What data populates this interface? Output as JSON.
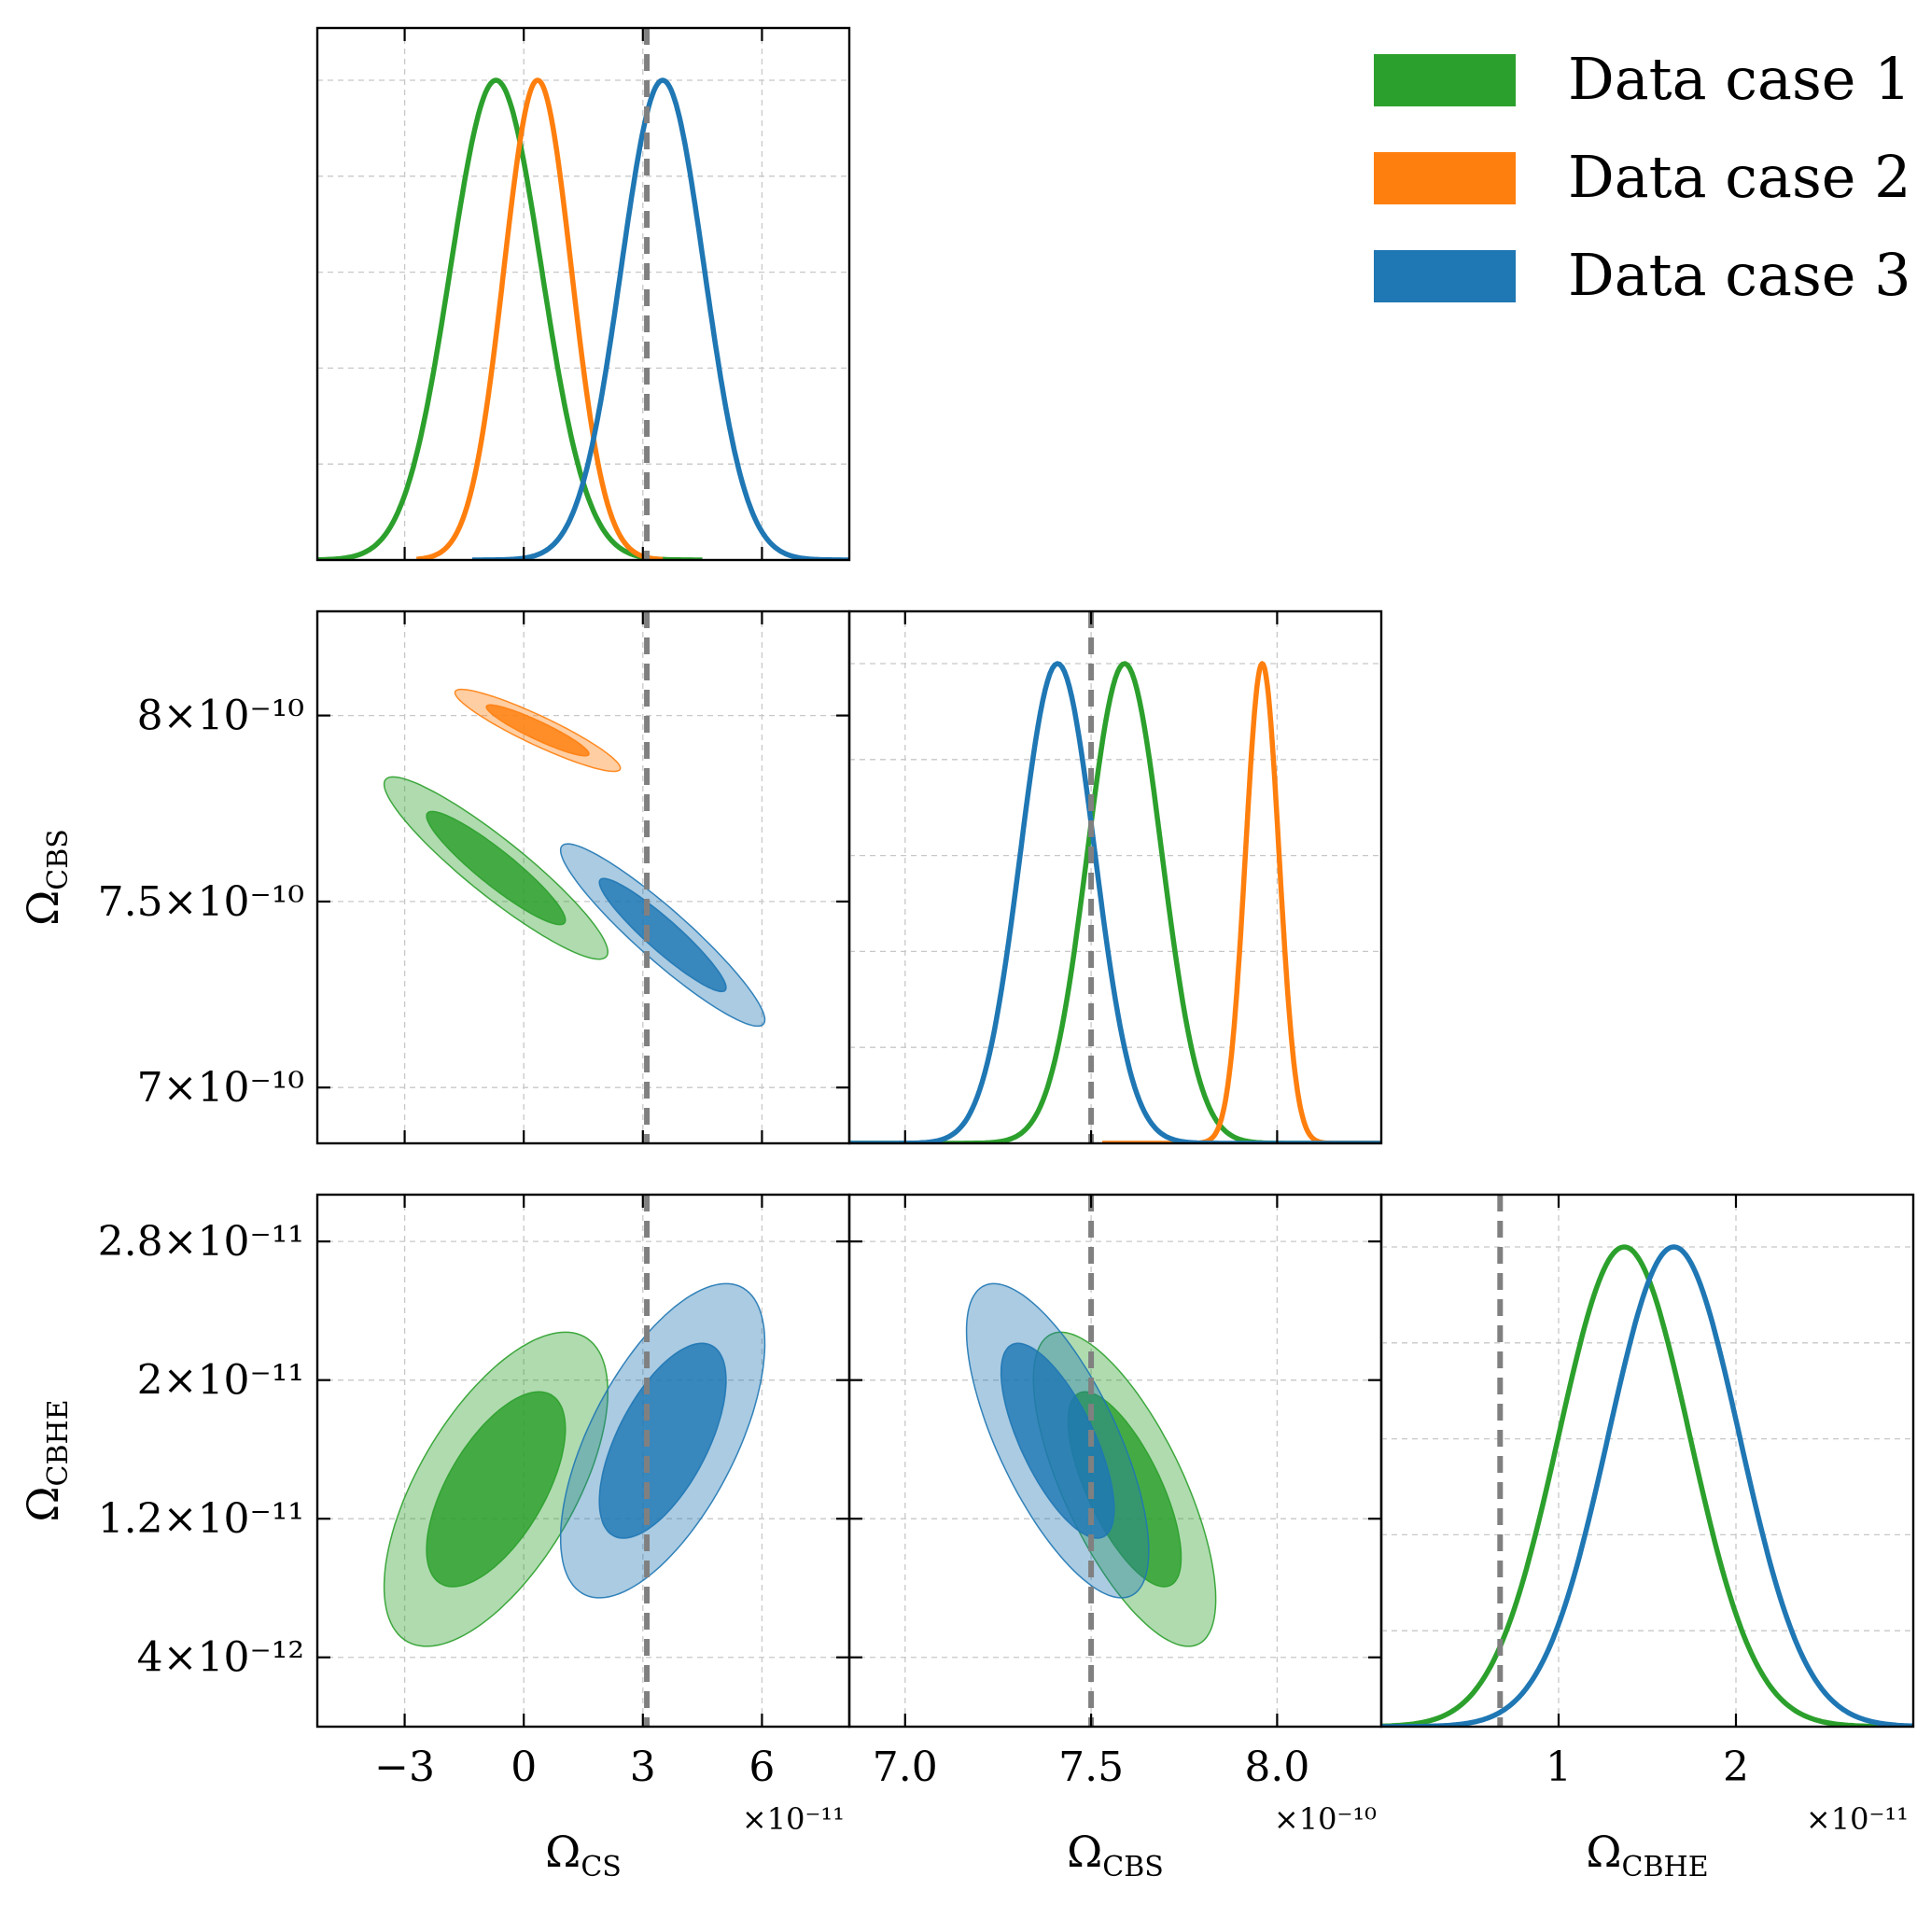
{
  "chart_data": {
    "type": "triangle-corner",
    "grid": true,
    "legend_position": "top-right",
    "truth_line_color": "#808080",
    "series": [
      {
        "name": "Data case 1",
        "color": "#2ca02c"
      },
      {
        "name": "Data case 2",
        "color": "#ff7f0e"
      },
      {
        "name": "Data case 3",
        "color": "#1f77b4"
      }
    ],
    "parameters": [
      {
        "key": "CS",
        "label": "Ω",
        "label_sub": "CS",
        "multiplier": "×10⁻¹¹",
        "range": [
          -5.2,
          8.2
        ],
        "ticks": [
          -3,
          0,
          3,
          6
        ],
        "tick_labels": [
          "−3",
          "0",
          "3",
          "6"
        ],
        "truth": 3.1
      },
      {
        "key": "CBS",
        "label": "Ω",
        "label_sub": "CBS",
        "multiplier": "×10⁻¹⁰",
        "range": [
          6.85,
          8.28
        ],
        "ticks": [
          7.0,
          7.5,
          8.0
        ],
        "tick_labels": [
          "7.0",
          "7.5",
          "8.0"
        ],
        "y_tick_labels": [
          "7×10⁻¹⁰",
          "7.5×10⁻¹⁰",
          "8×10⁻¹⁰"
        ],
        "truth": 7.5
      },
      {
        "key": "CBHE",
        "label": "Ω",
        "label_sub": "CBHE",
        "multiplier": "×10⁻¹¹",
        "range": [
          0.0,
          3.0
        ],
        "ticks": [
          1,
          2
        ],
        "tick_labels": [
          "1",
          "2"
        ],
        "y_ticks": [
          0.4,
          1.2,
          2.0,
          2.8
        ],
        "y_tick_labels": [
          "4×10⁻¹²",
          "1.2×10⁻¹¹",
          "2×10⁻¹¹",
          "2.8×10⁻¹¹"
        ],
        "y_range": [
          0.0,
          3.07
        ],
        "truth": 0.67
      }
    ],
    "marginals": [
      {
        "param": "CS",
        "series": "Data case 1",
        "mean": -0.7,
        "sd": 1.15,
        "span": [
          -5.2,
          4.5
        ]
      },
      {
        "param": "CS",
        "series": "Data case 2",
        "mean": 0.35,
        "sd": 0.85,
        "span": [
          -2.7,
          3.5
        ]
      },
      {
        "param": "CS",
        "series": "Data case 3",
        "mean": 3.5,
        "sd": 1.05,
        "span": [
          -1.3,
          8.2
        ]
      },
      {
        "param": "CBS",
        "series": "Data case 1",
        "mean": 7.59,
        "sd": 0.1,
        "span": [
          6.85,
          8.28
        ]
      },
      {
        "param": "CBS",
        "series": "Data case 2",
        "mean": 7.96,
        "sd": 0.045,
        "span": [
          7.53,
          8.28
        ]
      },
      {
        "param": "CBS",
        "series": "Data case 3",
        "mean": 7.41,
        "sd": 0.1,
        "span": [
          6.85,
          8.28
        ]
      },
      {
        "param": "CBHE",
        "series": "Data case 1",
        "mean": 1.37,
        "sd": 0.37,
        "span": [
          0.0,
          3.0
        ]
      },
      {
        "param": "CBHE",
        "series": "Data case 3",
        "mean": 1.65,
        "sd": 0.37,
        "span": [
          0.0,
          3.0
        ]
      }
    ],
    "contours": [
      {
        "panel": "CS-CBS",
        "series": "Data case 1",
        "center": [
          -0.7,
          7.59
        ],
        "sd": [
          1.15,
          0.1
        ],
        "corr": -0.92
      },
      {
        "panel": "CS-CBS",
        "series": "Data case 2",
        "center": [
          0.35,
          7.96
        ],
        "sd": [
          0.85,
          0.045
        ],
        "corr": -0.92
      },
      {
        "panel": "CS-CBS",
        "series": "Data case 3",
        "center": [
          3.5,
          7.41
        ],
        "sd": [
          1.05,
          0.1
        ],
        "corr": -0.93
      },
      {
        "panel": "CS-CBHE",
        "series": "Data case 1",
        "center": [
          -0.7,
          1.37
        ],
        "sd": [
          1.15,
          0.37
        ],
        "corr": 0.62
      },
      {
        "panel": "CS-CBHE",
        "series": "Data case 3",
        "center": [
          3.5,
          1.65
        ],
        "sd": [
          1.05,
          0.37
        ],
        "corr": 0.62
      },
      {
        "panel": "CBS-CBHE",
        "series": "Data case 1",
        "center": [
          7.59,
          1.37
        ],
        "sd": [
          0.1,
          0.37
        ],
        "corr": -0.7
      },
      {
        "panel": "CBS-CBHE",
        "series": "Data case 3",
        "center": [
          7.41,
          1.65
        ],
        "sd": [
          0.1,
          0.37
        ],
        "corr": -0.7
      }
    ]
  }
}
